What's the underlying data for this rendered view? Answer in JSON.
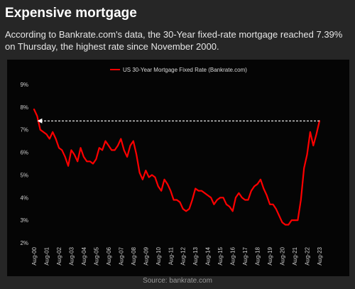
{
  "header": {
    "title": "Expensive mortgage",
    "subtitle": "According to Bankrate.com's data, the 30-Year fixed-rate mortgage reached 7.39% on Thursday, the highest rate since November 2000."
  },
  "footer": {
    "source": "Source: bankrate.com"
  },
  "colors": {
    "line": "#ff0000",
    "background": "#262626",
    "panel": "#050505",
    "arrow": "#ffffff"
  },
  "chart_data": {
    "type": "line",
    "title": "",
    "xlabel": "",
    "ylabel": "",
    "ylim": [
      2,
      9
    ],
    "y_ticks": [
      "2%",
      "3%",
      "4%",
      "5%",
      "6%",
      "7%",
      "8%",
      "9%"
    ],
    "y_tick_values": [
      2,
      3,
      4,
      5,
      6,
      7,
      8,
      9
    ],
    "x_ticks": [
      "Aug-00",
      "Aug-01",
      "Aug-02",
      "Aug-03",
      "Aug-04",
      "Aug-05",
      "Aug-06",
      "Aug-07",
      "Aug-08",
      "Aug-09",
      "Aug-10",
      "Aug-11",
      "Aug-12",
      "Aug-13",
      "Aug-14",
      "Aug-15",
      "Aug-16",
      "Aug-17",
      "Aug-18",
      "Aug-19",
      "Aug-20",
      "Aug-21",
      "Aug-22",
      "Aug-23"
    ],
    "legend_position": "top-center",
    "grid": false,
    "annotation": {
      "type": "dashed-arrow",
      "from": {
        "x": "Aug-23",
        "y": 7.39
      },
      "to": {
        "x": "Nov-00",
        "y": 7.39
      }
    },
    "series": [
      {
        "name": "US 30-Year Mortgage Fixed Rate (Bankrate.com)",
        "x": [
          "Aug-00",
          "Nov-00",
          "Feb-01",
          "May-01",
          "Aug-01",
          "Nov-01",
          "Feb-02",
          "May-02",
          "Aug-02",
          "Nov-02",
          "Feb-03",
          "May-03",
          "Aug-03",
          "Nov-03",
          "Feb-04",
          "May-04",
          "Aug-04",
          "Nov-04",
          "Feb-05",
          "May-05",
          "Aug-05",
          "Nov-05",
          "Feb-06",
          "May-06",
          "Aug-06",
          "Nov-06",
          "Feb-07",
          "May-07",
          "Aug-07",
          "Nov-07",
          "Feb-08",
          "May-08",
          "Aug-08",
          "Nov-08",
          "Feb-09",
          "May-09",
          "Aug-09",
          "Nov-09",
          "Feb-10",
          "May-10",
          "Aug-10",
          "Nov-10",
          "Feb-11",
          "May-11",
          "Aug-11",
          "Nov-11",
          "Feb-12",
          "May-12",
          "Aug-12",
          "Nov-12",
          "Feb-13",
          "May-13",
          "Aug-13",
          "Nov-13",
          "Feb-14",
          "May-14",
          "Aug-14",
          "Nov-14",
          "Feb-15",
          "May-15",
          "Aug-15",
          "Nov-15",
          "Feb-16",
          "May-16",
          "Aug-16",
          "Nov-16",
          "Feb-17",
          "May-17",
          "Aug-17",
          "Nov-17",
          "Feb-18",
          "May-18",
          "Aug-18",
          "Nov-18",
          "Feb-19",
          "May-19",
          "Aug-19",
          "Nov-19",
          "Feb-20",
          "May-20",
          "Aug-20",
          "Nov-20",
          "Feb-21",
          "May-21",
          "Aug-21",
          "Nov-21",
          "Feb-22",
          "May-22",
          "Aug-22",
          "Nov-22",
          "Feb-23",
          "May-23",
          "Aug-23"
        ],
        "values": [
          7.9,
          7.6,
          7.0,
          6.9,
          6.8,
          6.6,
          6.9,
          6.6,
          6.2,
          6.1,
          5.8,
          5.4,
          6.1,
          5.9,
          5.6,
          6.2,
          5.8,
          5.6,
          5.6,
          5.5,
          5.7,
          6.2,
          6.1,
          6.5,
          6.3,
          6.1,
          6.1,
          6.3,
          6.6,
          6.1,
          5.8,
          6.3,
          6.5,
          5.9,
          5.1,
          4.8,
          5.2,
          4.9,
          5.0,
          4.9,
          4.5,
          4.3,
          4.8,
          4.6,
          4.3,
          3.9,
          3.9,
          3.8,
          3.5,
          3.4,
          3.5,
          3.9,
          4.4,
          4.3,
          4.3,
          4.2,
          4.1,
          4.0,
          3.7,
          3.9,
          4.0,
          4.0,
          3.7,
          3.6,
          3.4,
          4.0,
          4.2,
          4.0,
          3.9,
          3.9,
          4.3,
          4.5,
          4.6,
          4.8,
          4.4,
          4.1,
          3.7,
          3.7,
          3.5,
          3.2,
          2.9,
          2.8,
          2.8,
          3.0,
          3.0,
          3.0,
          3.9,
          5.3,
          5.9,
          6.9,
          6.3,
          6.8,
          7.39
        ]
      }
    ]
  }
}
